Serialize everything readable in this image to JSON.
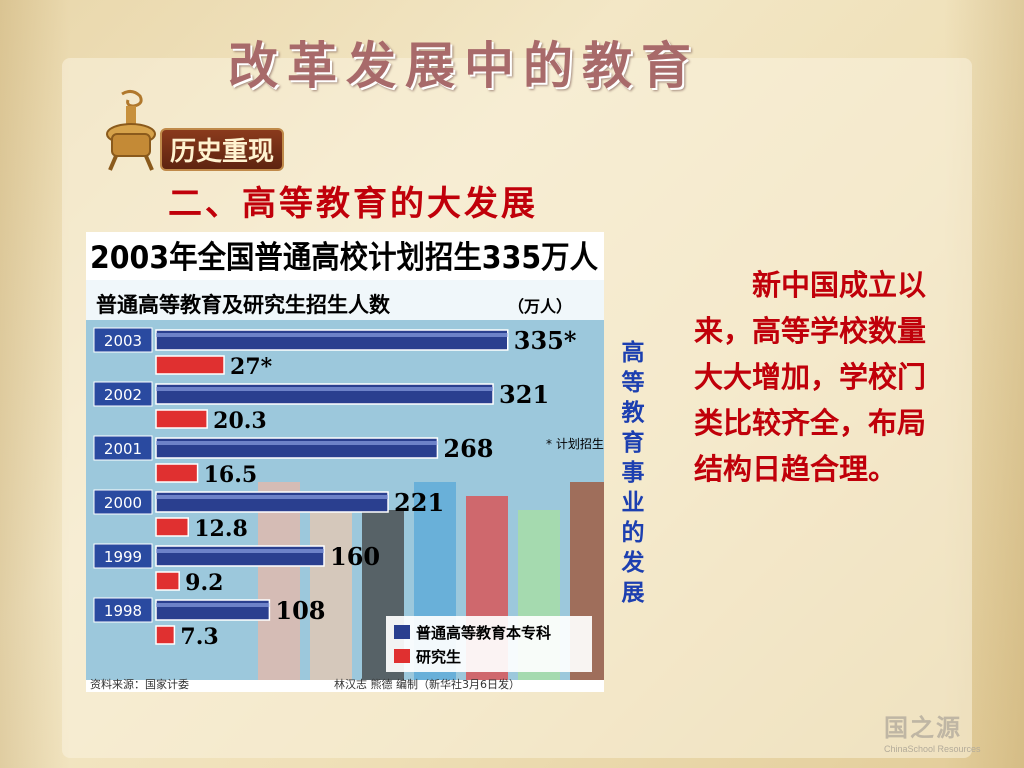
{
  "slide": {
    "title": "改革发展中的教育",
    "badge": "历史重现",
    "subtitle": "二、高等教育的大发展",
    "vertical_caption": "高等教育事业的发展",
    "body_text": "新中国成立以来，高等学校数量大大增加，学校门类比较齐全，布局结构日趋合理。",
    "logo": "国之源",
    "logo_sub": "ChinaSchool Resources"
  },
  "chart_data": {
    "type": "bar",
    "orientation": "horizontal",
    "title": "2003年全国普通高校计划招生335万人",
    "subtitle": "普通高等教育及研究生招生人数",
    "unit": "（万人）",
    "categories": [
      "2003",
      "2002",
      "2001",
      "2000",
      "1999",
      "1998"
    ],
    "series": [
      {
        "name": "普通高等教育本专科",
        "color": "#2a3f8f",
        "values": [
          335,
          321,
          268,
          221,
          160,
          108
        ],
        "labels": [
          "335*",
          "321",
          "268",
          "221",
          "160",
          "108"
        ]
      },
      {
        "name": "研究生",
        "color": "#e03030",
        "values": [
          27,
          20.3,
          16.5,
          12.8,
          9.2,
          7.3
        ],
        "labels": [
          "27*",
          "20.3",
          "16.5",
          "12.8",
          "9.2",
          "7.3"
        ]
      }
    ],
    "note": "* 计划招生人数",
    "source": "资料来源：国家计委",
    "credit": "林汉志  熊德  编制（新华社3月6日发）",
    "xlim": [
      0,
      400
    ]
  },
  "colors": {
    "title_red": "#c0000a",
    "caption_blue": "#1c3fb0"
  }
}
